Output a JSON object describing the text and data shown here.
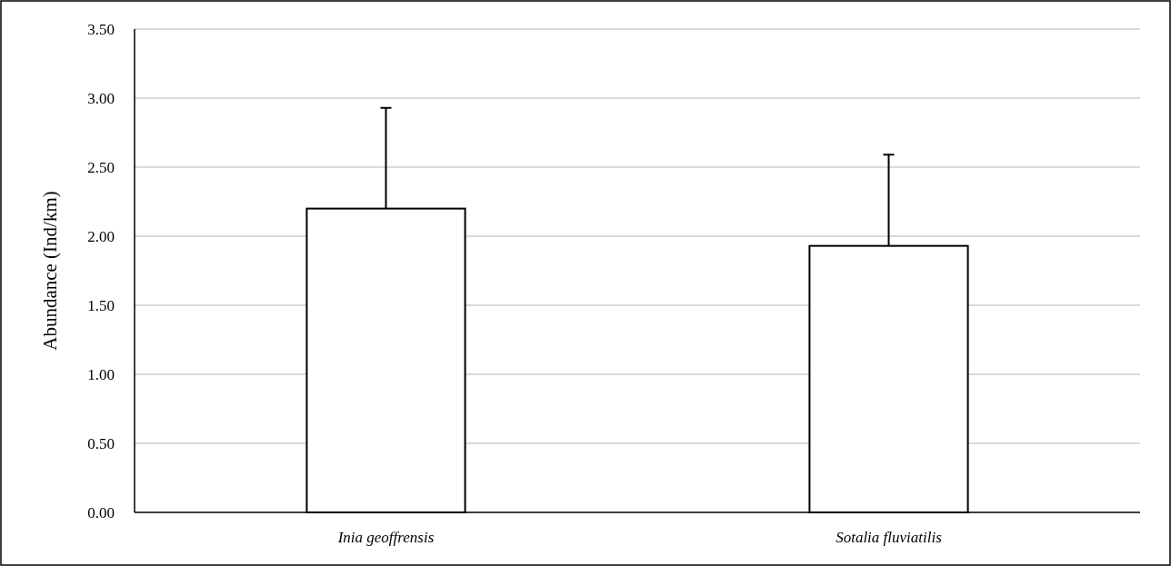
{
  "chart_data": {
    "type": "bar",
    "ylabel": "Abundance (Ind/km)",
    "categories": [
      "Inia geoffrensis",
      "Sotalia fluviatilis"
    ],
    "values": [
      2.2,
      1.93
    ],
    "errors": [
      [
        2.2,
        2.93
      ],
      [
        1.93,
        2.59
      ]
    ],
    "color": "#ffffff",
    "ylim": [
      0,
      3.5
    ],
    "yticks": [
      {
        "value": 0,
        "label": "0.00"
      },
      {
        "value": 0.5,
        "label": "0.50"
      },
      {
        "value": 1,
        "label": "1.00"
      },
      {
        "value": 1.5,
        "label": "1.50"
      },
      {
        "value": 2,
        "label": "2.00"
      },
      {
        "value": 2.5,
        "label": "2.50"
      },
      {
        "value": 3,
        "label": "3.00"
      },
      {
        "value": 3.5,
        "label": "3.50"
      }
    ],
    "grid": "y"
  }
}
